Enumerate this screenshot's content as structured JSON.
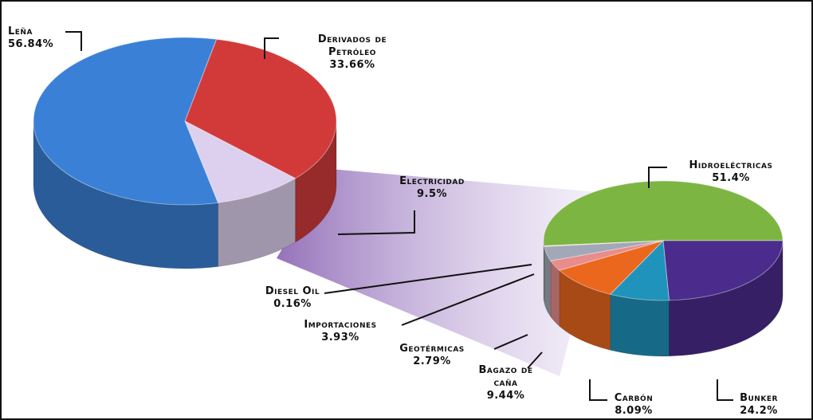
{
  "chart_data": [
    {
      "type": "pie",
      "categories": [
        "Leña",
        "Derivados de Petróleo",
        "Electricidad"
      ],
      "values": [
        56.84,
        33.66,
        9.5
      ],
      "value_labels": [
        "56.84%",
        "33.66%",
        "9.5%"
      ],
      "colors": [
        "#3a80d6",
        "#d23a3a",
        "#ddd0ee"
      ]
    },
    {
      "type": "pie",
      "categories": [
        "Hidroeléctricas",
        "Bunker",
        "Carbón",
        "Bagazo de caña",
        "Geotérmicas",
        "Importaciones",
        "Diesel Oil"
      ],
      "values": [
        51.4,
        24.2,
        8.09,
        9.44,
        2.79,
        3.93,
        0.16
      ],
      "value_labels": [
        "51.4%",
        "24.2%",
        "8.09%",
        "9.44%",
        "2.79%",
        "3.93%",
        "0.16%"
      ],
      "colors": [
        "#7db543",
        "#4b2b8c",
        "#1f93bb",
        "#ea671d",
        "#e98c8c",
        "#a3a8b8",
        "#f2e4c8"
      ]
    }
  ]
}
